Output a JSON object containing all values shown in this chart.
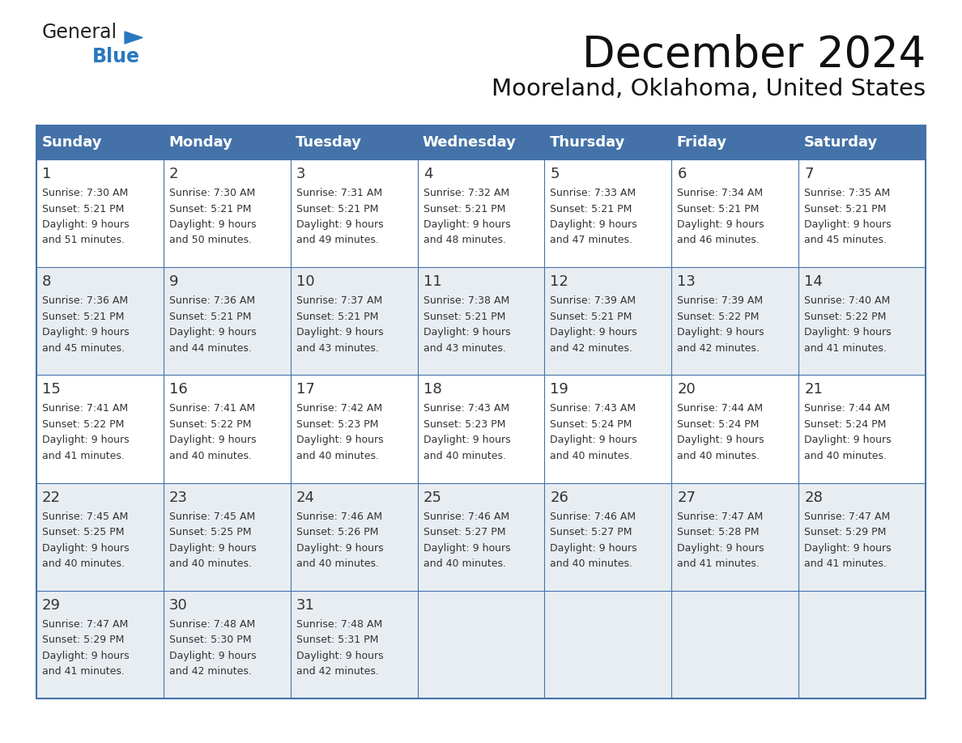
{
  "title": "December 2024",
  "subtitle": "Mooreland, Oklahoma, United States",
  "header_color": "#4472a8",
  "header_text_color": "#ffffff",
  "cell_bg_white": "#ffffff",
  "cell_bg_gray": "#e8edf2",
  "grid_line_color": "#4472a8",
  "text_color": "#333333",
  "day_names": [
    "Sunday",
    "Monday",
    "Tuesday",
    "Wednesday",
    "Thursday",
    "Friday",
    "Saturday"
  ],
  "days": [
    {
      "date": 1,
      "col": 0,
      "row": 0,
      "sunrise": "7:30 AM",
      "sunset": "5:21 PM",
      "daylight_h": "9 hours",
      "daylight_m": "51 minutes."
    },
    {
      "date": 2,
      "col": 1,
      "row": 0,
      "sunrise": "7:30 AM",
      "sunset": "5:21 PM",
      "daylight_h": "9 hours",
      "daylight_m": "50 minutes."
    },
    {
      "date": 3,
      "col": 2,
      "row": 0,
      "sunrise": "7:31 AM",
      "sunset": "5:21 PM",
      "daylight_h": "9 hours",
      "daylight_m": "49 minutes."
    },
    {
      "date": 4,
      "col": 3,
      "row": 0,
      "sunrise": "7:32 AM",
      "sunset": "5:21 PM",
      "daylight_h": "9 hours",
      "daylight_m": "48 minutes."
    },
    {
      "date": 5,
      "col": 4,
      "row": 0,
      "sunrise": "7:33 AM",
      "sunset": "5:21 PM",
      "daylight_h": "9 hours",
      "daylight_m": "47 minutes."
    },
    {
      "date": 6,
      "col": 5,
      "row": 0,
      "sunrise": "7:34 AM",
      "sunset": "5:21 PM",
      "daylight_h": "9 hours",
      "daylight_m": "46 minutes."
    },
    {
      "date": 7,
      "col": 6,
      "row": 0,
      "sunrise": "7:35 AM",
      "sunset": "5:21 PM",
      "daylight_h": "9 hours",
      "daylight_m": "45 minutes."
    },
    {
      "date": 8,
      "col": 0,
      "row": 1,
      "sunrise": "7:36 AM",
      "sunset": "5:21 PM",
      "daylight_h": "9 hours",
      "daylight_m": "45 minutes."
    },
    {
      "date": 9,
      "col": 1,
      "row": 1,
      "sunrise": "7:36 AM",
      "sunset": "5:21 PM",
      "daylight_h": "9 hours",
      "daylight_m": "44 minutes."
    },
    {
      "date": 10,
      "col": 2,
      "row": 1,
      "sunrise": "7:37 AM",
      "sunset": "5:21 PM",
      "daylight_h": "9 hours",
      "daylight_m": "43 minutes."
    },
    {
      "date": 11,
      "col": 3,
      "row": 1,
      "sunrise": "7:38 AM",
      "sunset": "5:21 PM",
      "daylight_h": "9 hours",
      "daylight_m": "43 minutes."
    },
    {
      "date": 12,
      "col": 4,
      "row": 1,
      "sunrise": "7:39 AM",
      "sunset": "5:21 PM",
      "daylight_h": "9 hours",
      "daylight_m": "42 minutes."
    },
    {
      "date": 13,
      "col": 5,
      "row": 1,
      "sunrise": "7:39 AM",
      "sunset": "5:22 PM",
      "daylight_h": "9 hours",
      "daylight_m": "42 minutes."
    },
    {
      "date": 14,
      "col": 6,
      "row": 1,
      "sunrise": "7:40 AM",
      "sunset": "5:22 PM",
      "daylight_h": "9 hours",
      "daylight_m": "41 minutes."
    },
    {
      "date": 15,
      "col": 0,
      "row": 2,
      "sunrise": "7:41 AM",
      "sunset": "5:22 PM",
      "daylight_h": "9 hours",
      "daylight_m": "41 minutes."
    },
    {
      "date": 16,
      "col": 1,
      "row": 2,
      "sunrise": "7:41 AM",
      "sunset": "5:22 PM",
      "daylight_h": "9 hours",
      "daylight_m": "40 minutes."
    },
    {
      "date": 17,
      "col": 2,
      "row": 2,
      "sunrise": "7:42 AM",
      "sunset": "5:23 PM",
      "daylight_h": "9 hours",
      "daylight_m": "40 minutes."
    },
    {
      "date": 18,
      "col": 3,
      "row": 2,
      "sunrise": "7:43 AM",
      "sunset": "5:23 PM",
      "daylight_h": "9 hours",
      "daylight_m": "40 minutes."
    },
    {
      "date": 19,
      "col": 4,
      "row": 2,
      "sunrise": "7:43 AM",
      "sunset": "5:24 PM",
      "daylight_h": "9 hours",
      "daylight_m": "40 minutes."
    },
    {
      "date": 20,
      "col": 5,
      "row": 2,
      "sunrise": "7:44 AM",
      "sunset": "5:24 PM",
      "daylight_h": "9 hours",
      "daylight_m": "40 minutes."
    },
    {
      "date": 21,
      "col": 6,
      "row": 2,
      "sunrise": "7:44 AM",
      "sunset": "5:24 PM",
      "daylight_h": "9 hours",
      "daylight_m": "40 minutes."
    },
    {
      "date": 22,
      "col": 0,
      "row": 3,
      "sunrise": "7:45 AM",
      "sunset": "5:25 PM",
      "daylight_h": "9 hours",
      "daylight_m": "40 minutes."
    },
    {
      "date": 23,
      "col": 1,
      "row": 3,
      "sunrise": "7:45 AM",
      "sunset": "5:25 PM",
      "daylight_h": "9 hours",
      "daylight_m": "40 minutes."
    },
    {
      "date": 24,
      "col": 2,
      "row": 3,
      "sunrise": "7:46 AM",
      "sunset": "5:26 PM",
      "daylight_h": "9 hours",
      "daylight_m": "40 minutes."
    },
    {
      "date": 25,
      "col": 3,
      "row": 3,
      "sunrise": "7:46 AM",
      "sunset": "5:27 PM",
      "daylight_h": "9 hours",
      "daylight_m": "40 minutes."
    },
    {
      "date": 26,
      "col": 4,
      "row": 3,
      "sunrise": "7:46 AM",
      "sunset": "5:27 PM",
      "daylight_h": "9 hours",
      "daylight_m": "40 minutes."
    },
    {
      "date": 27,
      "col": 5,
      "row": 3,
      "sunrise": "7:47 AM",
      "sunset": "5:28 PM",
      "daylight_h": "9 hours",
      "daylight_m": "41 minutes."
    },
    {
      "date": 28,
      "col": 6,
      "row": 3,
      "sunrise": "7:47 AM",
      "sunset": "5:29 PM",
      "daylight_h": "9 hours",
      "daylight_m": "41 minutes."
    },
    {
      "date": 29,
      "col": 0,
      "row": 4,
      "sunrise": "7:47 AM",
      "sunset": "5:29 PM",
      "daylight_h": "9 hours",
      "daylight_m": "41 minutes."
    },
    {
      "date": 30,
      "col": 1,
      "row": 4,
      "sunrise": "7:48 AM",
      "sunset": "5:30 PM",
      "daylight_h": "9 hours",
      "daylight_m": "42 minutes."
    },
    {
      "date": 31,
      "col": 2,
      "row": 4,
      "sunrise": "7:48 AM",
      "sunset": "5:31 PM",
      "daylight_h": "9 hours",
      "daylight_m": "42 minutes."
    }
  ],
  "num_rows": 5,
  "logo_general_color": "#222222",
  "logo_blue_color": "#2878c0",
  "title_fontsize": 38,
  "subtitle_fontsize": 21,
  "header_fontsize": 13,
  "date_fontsize": 13,
  "cell_fontsize": 9.0,
  "fig_width": 11.88,
  "fig_height": 9.18,
  "dpi": 100
}
